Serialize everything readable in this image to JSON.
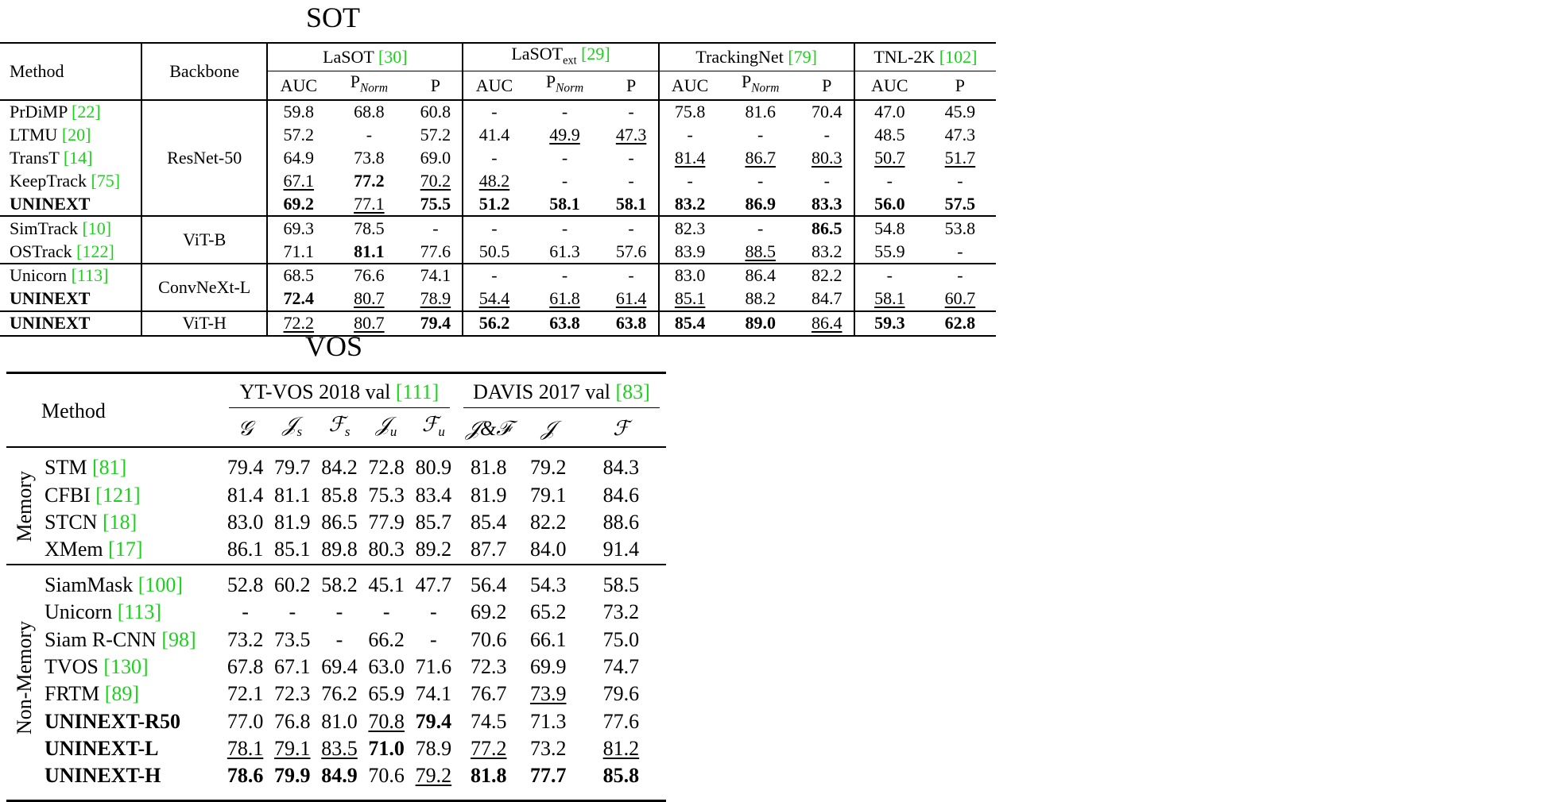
{
  "sot": {
    "title": "SOT",
    "header": {
      "method": "Method",
      "backbone": "Backbone",
      "datasets": [
        {
          "name": "LaSOT ",
          "cite": "[30]",
          "sub": ""
        },
        {
          "name": "LaSOT",
          "sub": "ext",
          "cite": "[29]"
        },
        {
          "name": "TrackingNet ",
          "cite": "[79]",
          "sub": ""
        },
        {
          "name": "TNL-2K ",
          "cite": "[102]",
          "sub": ""
        }
      ],
      "auc": "AUC",
      "pnorm_base": "P",
      "pnorm_sub": "Norm",
      "p": "P"
    },
    "groups": [
      {
        "backbone": "ResNet-50",
        "rows": [
          {
            "method": "PrDiMP ",
            "cite": "[22]",
            "bold": false,
            "values": [
              "59.8",
              "68.8",
              "60.8",
              "-",
              "-",
              "-",
              "75.8",
              "81.6",
              "70.4",
              "47.0",
              "45.9"
            ]
          },
          {
            "method": "LTMU ",
            "cite": "[20]",
            "bold": false,
            "values": [
              "57.2",
              "-",
              "57.2",
              "41.4",
              "49.9",
              "47.3",
              "-",
              "-",
              "-",
              "48.5",
              "47.3"
            ]
          },
          {
            "method": "TransT ",
            "cite": "[14]",
            "bold": false,
            "values": [
              "64.9",
              "73.8",
              "69.0",
              "-",
              "-",
              "-",
              "81.4",
              "86.7",
              "80.3",
              "50.7",
              "51.7"
            ]
          },
          {
            "method": "KeepTrack ",
            "cite": "[75]",
            "bold": false,
            "values": [
              "67.1",
              "77.2",
              "70.2",
              "48.2",
              "-",
              "-",
              "-",
              "-",
              "-",
              "-",
              "-"
            ]
          },
          {
            "method": "UNINEXT",
            "cite": "",
            "bold": true,
            "values": [
              "69.2",
              "77.1",
              "75.5",
              "51.2",
              "58.1",
              "58.1",
              "83.2",
              "86.9",
              "83.3",
              "56.0",
              "57.5"
            ]
          }
        ]
      },
      {
        "backbone": "ViT-B",
        "rows": [
          {
            "method": "SimTrack ",
            "cite": "[10]",
            "bold": false,
            "values": [
              "69.3",
              "78.5",
              "-",
              "-",
              "-",
              "-",
              "82.3",
              "-",
              "86.5",
              "54.8",
              "53.8"
            ]
          },
          {
            "method": "OSTrack ",
            "cite": "[122]",
            "bold": false,
            "values": [
              "71.1",
              "81.1",
              "77.6",
              "50.5",
              "61.3",
              "57.6",
              "83.9",
              "88.5",
              "83.2",
              "55.9",
              "-"
            ]
          }
        ]
      },
      {
        "backbone": "ConvNeXt-L",
        "rows": [
          {
            "method": "Unicorn ",
            "cite": "[113]",
            "bold": false,
            "values": [
              "68.5",
              "76.6",
              "74.1",
              "-",
              "-",
              "-",
              "83.0",
              "86.4",
              "82.2",
              "-",
              "-"
            ]
          },
          {
            "method": "UNINEXT",
            "cite": "",
            "bold": true,
            "values": [
              "72.4",
              "80.7",
              "78.9",
              "54.4",
              "61.8",
              "61.4",
              "85.1",
              "88.2",
              "84.7",
              "58.1",
              "60.7"
            ]
          }
        ]
      },
      {
        "backbone": "ViT-H",
        "rows": [
          {
            "method": "UNINEXT",
            "cite": "",
            "bold": true,
            "values": [
              "72.2",
              "80.7",
              "79.4",
              "56.2",
              "63.8",
              "63.8",
              "85.4",
              "89.0",
              "86.4",
              "59.3",
              "62.8"
            ]
          }
        ]
      }
    ]
  },
  "vos": {
    "title": "VOS",
    "header": {
      "method": "Method",
      "ds1": "YT-VOS 2018 val ",
      "ds1_cite": "[111]",
      "ds2": "DAVIS 2017 val ",
      "ds2_cite": "[83]",
      "metric_g": "𝒢",
      "metric_j": "𝒥",
      "metric_f": "ℱ",
      "sub_s": "s",
      "sub_u": "u",
      "metric_jf": "𝒥&ℱ"
    },
    "groups": [
      {
        "label": "Memory",
        "rows": [
          {
            "method": "STM ",
            "cite": "[81]",
            "bold": false,
            "values": [
              "79.4",
              "79.7",
              "84.2",
              "72.8",
              "80.9",
              "81.8",
              "79.2",
              "84.3"
            ]
          },
          {
            "method": "CFBI ",
            "cite": "[121]",
            "bold": false,
            "values": [
              "81.4",
              "81.1",
              "85.8",
              "75.3",
              "83.4",
              "81.9",
              "79.1",
              "84.6"
            ]
          },
          {
            "method": "STCN ",
            "cite": "[18]",
            "bold": false,
            "values": [
              "83.0",
              "81.9",
              "86.5",
              "77.9",
              "85.7",
              "85.4",
              "82.2",
              "88.6"
            ]
          },
          {
            "method": "XMem ",
            "cite": "[17]",
            "bold": false,
            "values": [
              "86.1",
              "85.1",
              "89.8",
              "80.3",
              "89.2",
              "87.7",
              "84.0",
              "91.4"
            ]
          }
        ]
      },
      {
        "label": "Non-Memory",
        "rows": [
          {
            "method": "SiamMask ",
            "cite": "[100]",
            "bold": false,
            "values": [
              "52.8",
              "60.2",
              "58.2",
              "45.1",
              "47.7",
              "56.4",
              "54.3",
              "58.5"
            ]
          },
          {
            "method": "Unicorn ",
            "cite": "[113]",
            "bold": false,
            "values": [
              "-",
              "-",
              "-",
              "-",
              "-",
              "69.2",
              "65.2",
              "73.2"
            ]
          },
          {
            "method": "Siam R-CNN ",
            "cite": "[98]",
            "bold": false,
            "values": [
              "73.2",
              "73.5",
              "-",
              "66.2",
              "-",
              "70.6",
              "66.1",
              "75.0"
            ]
          },
          {
            "method": "TVOS ",
            "cite": "[130]",
            "bold": false,
            "values": [
              "67.8",
              "67.1",
              "69.4",
              "63.0",
              "71.6",
              "72.3",
              "69.9",
              "74.7"
            ]
          },
          {
            "method": "FRTM ",
            "cite": "[89]",
            "bold": false,
            "values": [
              "72.1",
              "72.3",
              "76.2",
              "65.9",
              "74.1",
              "76.7",
              "73.9",
              "79.6"
            ]
          },
          {
            "method": "UNINEXT-R50",
            "cite": "",
            "bold": true,
            "values": [
              "77.0",
              "76.8",
              "81.0",
              "70.8",
              "79.4",
              "74.5",
              "71.3",
              "77.6"
            ]
          },
          {
            "method": "UNINEXT-L",
            "cite": "",
            "bold": true,
            "values": [
              "78.1",
              "79.1",
              "83.5",
              "71.0",
              "78.9",
              "77.2",
              "73.2",
              "81.2"
            ]
          },
          {
            "method": "UNINEXT-H",
            "cite": "",
            "bold": true,
            "values": [
              "78.6",
              "79.9",
              "84.9",
              "70.6",
              "79.2",
              "81.8",
              "77.7",
              "85.8"
            ]
          }
        ]
      }
    ]
  }
}
